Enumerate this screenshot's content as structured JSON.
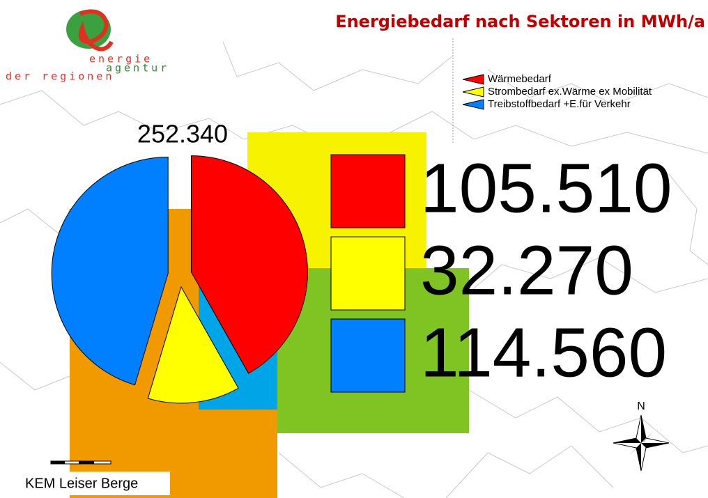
{
  "logo": {
    "line1": "energie",
    "line2": "agentur",
    "line3": "der regionen"
  },
  "region": "KEM Leiser Berge",
  "compass": "N",
  "chart_data": {
    "type": "pie",
    "title": "Energiebedarf nach Sektoren in MWh/a",
    "total": {
      "value": 252340,
      "label": "252.340"
    },
    "series": [
      {
        "name": "Wärmebedarf",
        "color": "#ff0000",
        "values": [
          105510
        ],
        "value_labels": [
          "105.510"
        ]
      },
      {
        "name": "Strombedarf ex.Wärme ex Mobilität",
        "color": "#ffff00",
        "values": [
          32270
        ],
        "value_labels": [
          "32.270"
        ]
      },
      {
        "name": "Treibstoffbedarf +E.für Verkehr",
        "color": "#0080ff",
        "values": [
          114560
        ],
        "value_labels": [
          "114.560"
        ]
      }
    ]
  }
}
